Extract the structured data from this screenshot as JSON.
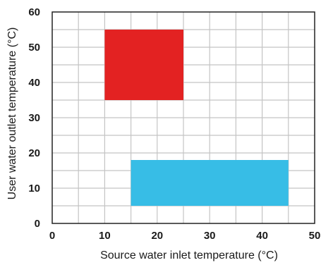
{
  "chart_data": {
    "type": "area",
    "xlabel": "Source water inlet temperature (°C)",
    "ylabel": "User water outlet temperature (°C)",
    "xlim": [
      0,
      50
    ],
    "ylim": [
      0,
      60
    ],
    "x_ticks": [
      0,
      10,
      20,
      30,
      40,
      50
    ],
    "y_ticks": [
      0,
      10,
      20,
      30,
      40,
      50,
      60
    ],
    "grid": true,
    "minor_grid_step": {
      "x": 5,
      "y": 5
    },
    "regions": [
      {
        "x": [
          10,
          25
        ],
        "y": [
          35,
          55
        ],
        "color": "#e32222"
      },
      {
        "x": [
          15,
          45
        ],
        "y": [
          5,
          18
        ],
        "color": "#37bde6"
      }
    ]
  }
}
